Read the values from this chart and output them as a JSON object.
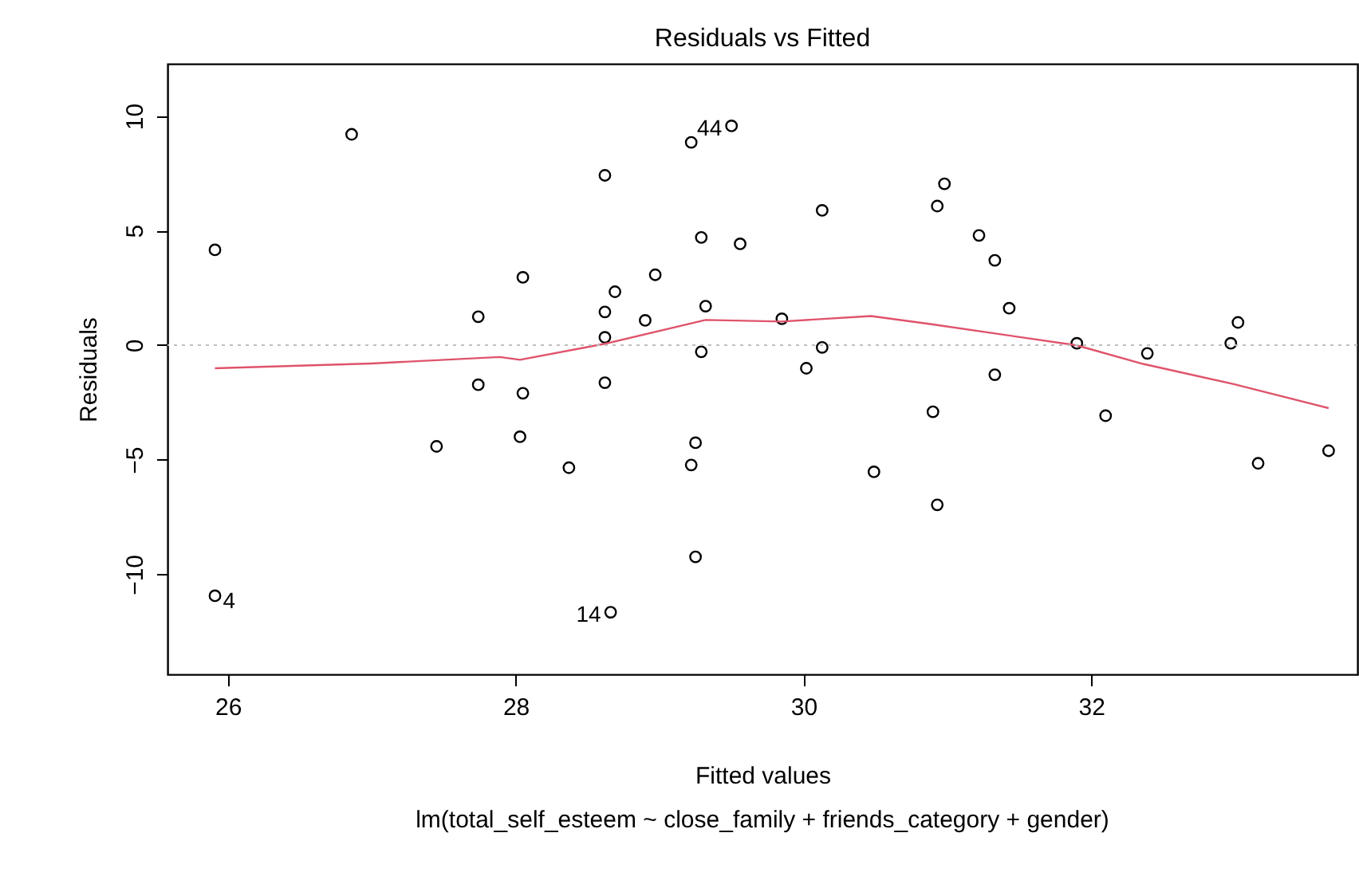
{
  "chart_data": {
    "type": "scatter",
    "title": "Residuals vs Fitted",
    "xlabel": "Fitted values",
    "ylabel": "Residuals",
    "xlim": [
      25.58,
      33.85
    ],
    "ylim": [
      -14.37,
      12.28
    ],
    "xticks": [
      26,
      28,
      30,
      32
    ],
    "yticks": [
      -10,
      -5,
      0,
      5,
      10
    ],
    "grid": false,
    "series": [
      {
        "type": "scatter",
        "marker": "circle",
        "color": "#000000",
        "x": [
          25.91,
          26.86,
          28.05,
          27.74,
          27.74,
          28.05,
          27.45,
          28.03,
          28.37,
          25.91,
          29.5,
          29.22,
          28.62,
          30.13,
          30.93,
          30.98,
          29.29,
          29.56,
          28.97,
          28.69,
          28.62,
          28.9,
          29.32,
          29.85,
          28.62,
          30.13,
          29.29,
          30.02,
          28.62,
          30.9,
          29.25,
          29.22,
          30.49,
          30.93,
          29.25,
          28.66,
          31.22,
          31.33,
          31.43,
          31.33,
          31.9,
          32.39,
          32.1,
          33.02,
          32.97,
          33.16,
          33.65
        ],
        "values": [
          4.16,
          9.2,
          2.96,
          1.24,
          -1.73,
          -2.1,
          -4.42,
          -4.0,
          -5.35,
          -10.94,
          9.57,
          8.85,
          7.41,
          5.88,
          6.07,
          7.04,
          4.7,
          4.42,
          3.07,
          2.33,
          1.45,
          1.08,
          1.7,
          1.15,
          0.34,
          -0.1,
          -0.29,
          -1.01,
          -1.64,
          -2.91,
          -4.26,
          -5.23,
          -5.53,
          -6.97,
          -9.24,
          -11.66,
          4.79,
          3.7,
          1.61,
          -1.29,
          0.08,
          -0.36,
          -3.08,
          0.99,
          0.08,
          -5.16,
          -4.61
        ]
      },
      {
        "type": "line",
        "color": "#df536b",
        "x": [
          25.91,
          27.0,
          27.89,
          28.03,
          28.62,
          29.32,
          29.85,
          30.47,
          30.88,
          31.9,
          32.36,
          32.99,
          33.65
        ],
        "values": [
          -1.01,
          -0.8,
          -0.52,
          -0.64,
          0.06,
          1.1,
          1.03,
          1.27,
          0.92,
          -0.01,
          -0.82,
          -1.7,
          -2.75
        ]
      }
    ],
    "ref_lines": [
      {
        "axis": "y",
        "value": 0,
        "color": "#bebebe",
        "line_style": "dotted"
      }
    ],
    "annotations": [
      {
        "text": "4",
        "x": 25.91,
        "y": -10.94
      },
      {
        "text": "14",
        "x": 28.66,
        "y": -11.66
      },
      {
        "text": "44",
        "x": 29.5,
        "y": 9.57
      },
      "lm(total_self_esteem ~ close_family + friends_category + gender)"
    ]
  }
}
